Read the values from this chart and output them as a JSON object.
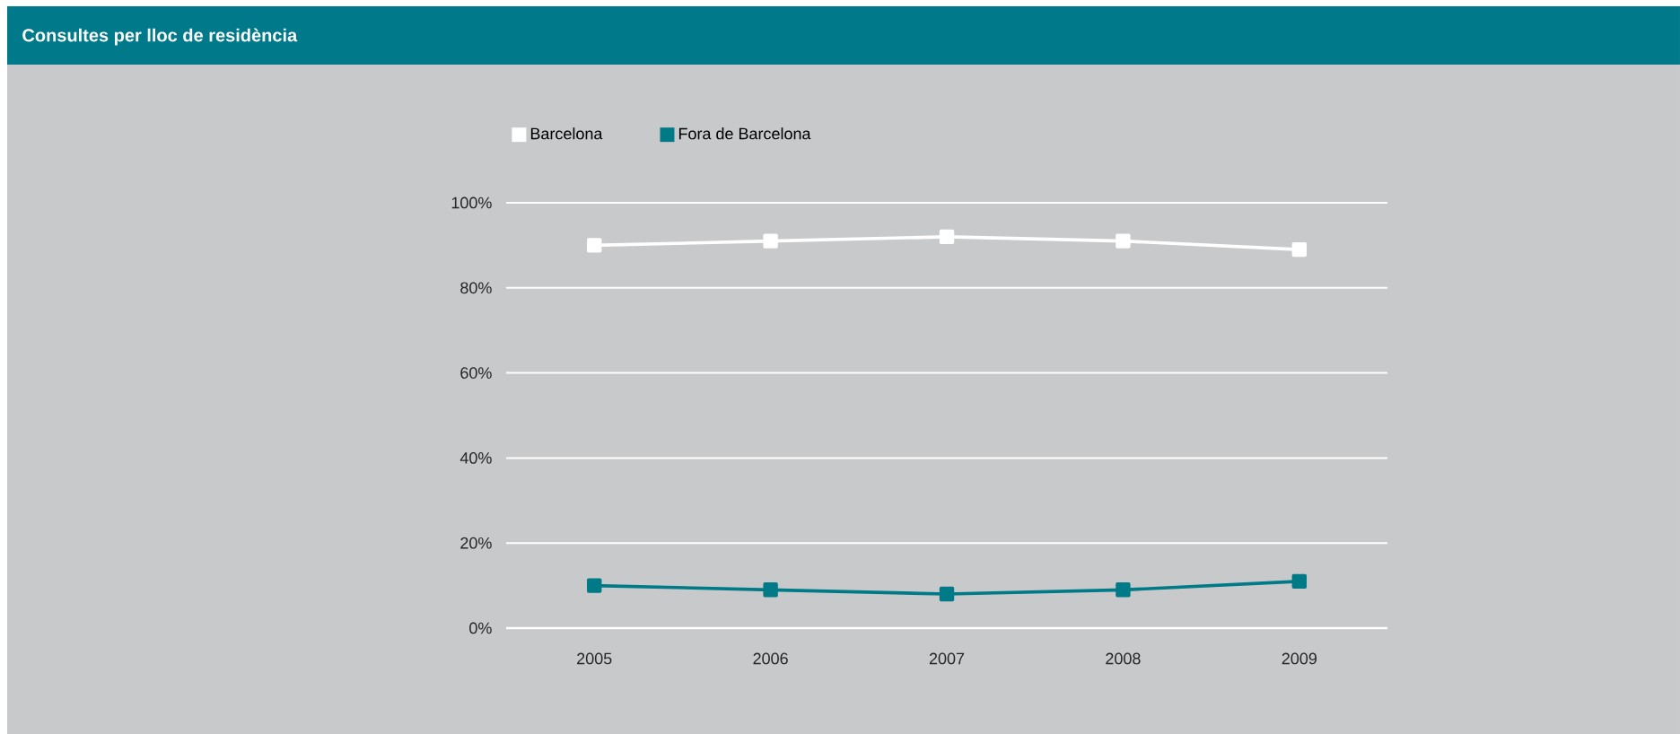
{
  "chart_data": {
    "type": "line",
    "title": "Consultes per lloc de residència",
    "categories": [
      "2005",
      "2006",
      "2007",
      "2008",
      "2009"
    ],
    "series": [
      {
        "name": "Barcelona",
        "color": "#ffffff",
        "values": [
          90,
          91,
          92,
          91,
          89
        ]
      },
      {
        "name": "Fora de Barcelona",
        "color": "#007a87",
        "values": [
          10,
          9,
          8,
          9,
          11
        ]
      }
    ],
    "ylim": [
      0,
      100
    ],
    "yticks": [
      {
        "value": 0,
        "label": "0%"
      },
      {
        "value": 20,
        "label": "20%"
      },
      {
        "value": 40,
        "label": "40%"
      },
      {
        "value": 60,
        "label": "60%"
      },
      {
        "value": 80,
        "label": "80%"
      },
      {
        "value": 100,
        "label": "100%"
      }
    ],
    "grid": "y",
    "legend": "top",
    "marker": "square",
    "line_style": "solid"
  }
}
